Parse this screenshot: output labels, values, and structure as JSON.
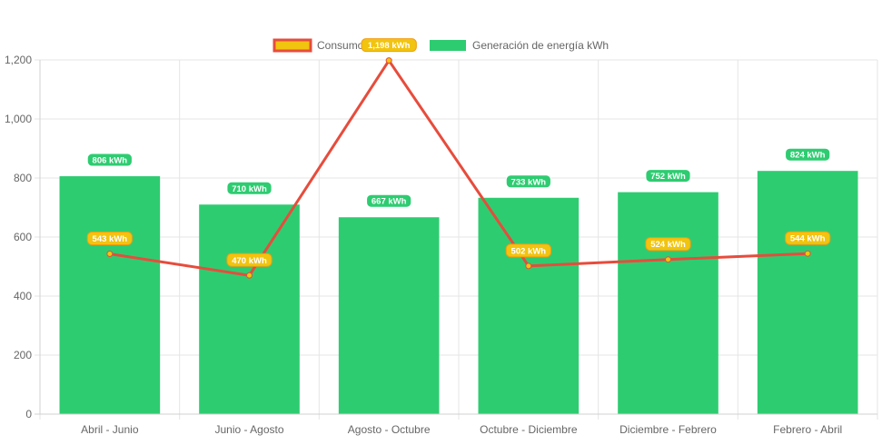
{
  "chart_data": {
    "type": "bar",
    "categories": [
      "Abril - Junio",
      "Junio - Agosto",
      "Agosto - Octubre",
      "Octubre - Diciembre",
      "Diciembre - Febrero",
      "Febrero - Abril"
    ],
    "series": [
      {
        "name": "Consumo kWh",
        "type": "line",
        "values": [
          543,
          470,
          1198,
          502,
          524,
          544
        ],
        "labels": [
          "543 kWh",
          "470 kWh",
          "1,198 kWh",
          "502 kWh",
          "524 kWh",
          "544 kWh"
        ],
        "color": "#e74c3c",
        "fill_color": "#f1c40f",
        "label_color": "#f39c12"
      },
      {
        "name": "Generación de energía kWh",
        "type": "bar",
        "values": [
          806,
          710,
          667,
          733,
          752,
          824
        ],
        "labels": [
          "806 kWh",
          "710 kWh",
          "667 kWh",
          "733 kWh",
          "752 kWh",
          "824 kWh"
        ],
        "color": "#2ecc71"
      }
    ],
    "ylim": [
      0,
      1200
    ],
    "yticks": [
      0,
      200,
      400,
      600,
      800,
      1000,
      1200
    ],
    "ytick_labels": [
      "0",
      "200",
      "400",
      "600",
      "800",
      "1,000",
      "1,200"
    ],
    "grid": true,
    "legend": "top-center"
  }
}
